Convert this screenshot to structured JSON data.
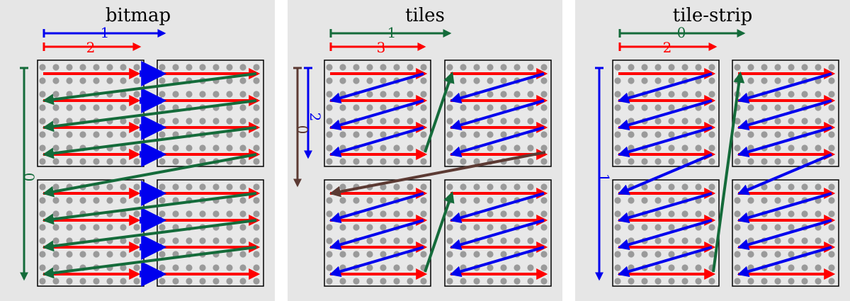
{
  "colors": {
    "panel_bg": "#e6e6e6",
    "tile_bg": "#e8e8e8",
    "dot": "#9a9a9a",
    "red": "#ff0000",
    "blue": "#0000ee",
    "green": "#146b3a",
    "brown": "#5c3a33"
  },
  "panels": [
    {
      "title": "bitmap",
      "labels": {
        "a": "1",
        "b": "2",
        "c": "0"
      }
    },
    {
      "title": "tiles",
      "labels": {
        "a": "1",
        "b": "3",
        "c": "2",
        "d": "0"
      }
    },
    {
      "title": "tile-strip",
      "labels": {
        "a": "0",
        "b": "2",
        "c": "1"
      }
    }
  ]
}
